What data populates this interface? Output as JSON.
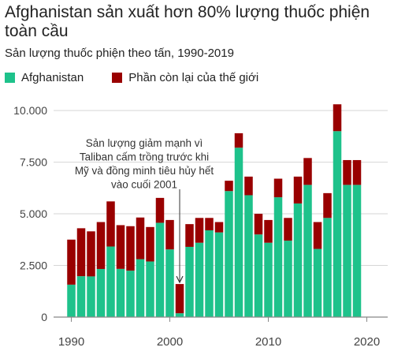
{
  "title": "Afghanistan sản xuất hơn 80% lượng thuốc phiện toàn cầu",
  "subtitle": "Sản lượng thuốc phiện theo tấn, 1990-2019",
  "colors": {
    "afghanistan": "#1ec28b",
    "rest": "#990000",
    "grid": "#d6d6d6",
    "axis": "#888888",
    "annotation": "#333333"
  },
  "chart_data": {
    "type": "bar",
    "stacked": true,
    "x": [
      1990,
      1991,
      1992,
      1993,
      1994,
      1995,
      1996,
      1997,
      1998,
      1999,
      2000,
      2001,
      2002,
      2003,
      2004,
      2005,
      2006,
      2007,
      2008,
      2009,
      2010,
      2011,
      2012,
      2013,
      2014,
      2015,
      2016,
      2017,
      2018,
      2019
    ],
    "series": [
      {
        "name": "Afghanistan",
        "color": "#1ec28b",
        "values": [
          1570,
          1980,
          1970,
          2330,
          3416,
          2335,
          2248,
          2804,
          2693,
          4565,
          3276,
          185,
          3400,
          3600,
          4200,
          4100,
          6100,
          8200,
          5900,
          4000,
          3600,
          5800,
          3700,
          5500,
          6400,
          3300,
          4800,
          9000,
          6400,
          6400
        ]
      },
      {
        "name": "Phần còn lại của thế giới",
        "color": "#990000",
        "values": [
          2180,
          2320,
          2180,
          2270,
          2184,
          2115,
          2152,
          2016,
          1667,
          1205,
          1424,
          1415,
          1100,
          1200,
          600,
          500,
          500,
          700,
          900,
          1000,
          1100,
          900,
          1100,
          1300,
          1300,
          1300,
          1200,
          1300,
          1200,
          1200
        ]
      }
    ],
    "ylim": [
      0,
      10500
    ],
    "yticks": [
      0,
      2500,
      5000,
      7500,
      10000
    ],
    "ytick_labels": [
      "0",
      "2.500",
      "5.000",
      "7.500",
      "10.000"
    ],
    "xticks": [
      1990,
      2000,
      2010,
      2020
    ],
    "xtick_labels": [
      "1990",
      "2000",
      "2010",
      "2020"
    ],
    "grid": true,
    "legend_position": "top-left",
    "annotation": {
      "lines": [
        "Sản lượng giảm mạnh vì",
        "Taliban cấm trồng trước khi",
        "Mỹ và đồng minh tiêu hủy hết",
        "vào cuối 2001"
      ],
      "target_year": 2001
    }
  }
}
